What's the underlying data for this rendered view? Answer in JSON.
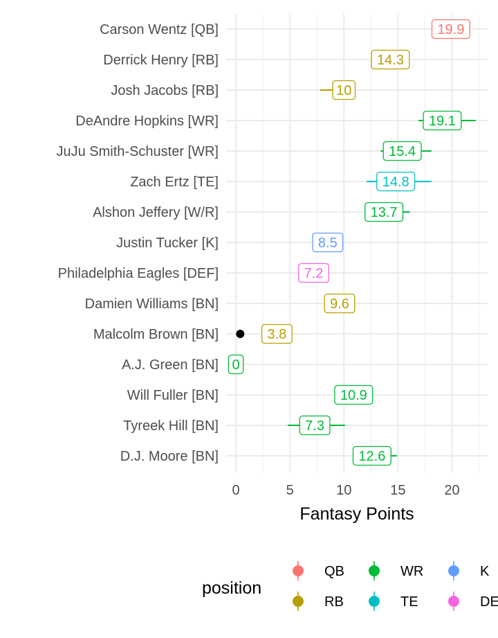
{
  "chart_data": {
    "type": "scatter",
    "xlabel": "Fantasy Points",
    "xlim": [
      -0.9,
      23.3
    ],
    "x_ticks": [
      0,
      5,
      10,
      15,
      20
    ],
    "grid": true,
    "legend_position": "bottom",
    "legend_title": "position",
    "players": [
      {
        "name": "Carson Wentz [QB]",
        "position": "QB",
        "points": 19.9,
        "label": "19.9",
        "range": null
      },
      {
        "name": "Derrick Henry [RB]",
        "position": "RB",
        "points": 14.3,
        "label": "14.3",
        "range": null
      },
      {
        "name": "Josh Jacobs [RB]",
        "position": "RB",
        "points": 10,
        "label": "10",
        "range": [
          7.8,
          10.9
        ]
      },
      {
        "name": "DeAndre Hopkins [WR]",
        "position": "WR",
        "points": 19.1,
        "label": "19.1",
        "range": [
          16.9,
          22.2
        ]
      },
      {
        "name": "JuJu Smith-Schuster [WR]",
        "position": "WR",
        "points": 15.4,
        "label": "15.4",
        "range": [
          13.4,
          18.1
        ]
      },
      {
        "name": "Zach Ertz [TE]",
        "position": "TE",
        "points": 14.8,
        "label": "14.8",
        "range": [
          12.1,
          18.1
        ]
      },
      {
        "name": "Alshon Jeffery [W/R]",
        "position": "WR",
        "points": 13.7,
        "label": "13.7",
        "range": [
          12.7,
          16.1
        ]
      },
      {
        "name": "Justin Tucker [K]",
        "position": "K",
        "points": 8.5,
        "label": "8.5",
        "range": null
      },
      {
        "name": "Philadelphia Eagles [DEF]",
        "position": "DEF",
        "points": 7.2,
        "label": "7.2",
        "range": null
      },
      {
        "name": "Damien Williams [BN]",
        "position": "RB",
        "points": 9.6,
        "label": "9.6",
        "range": null
      },
      {
        "name": "Malcolm Brown [BN]",
        "position": "RB",
        "points": 3.8,
        "label": "3.8",
        "range": null
      },
      {
        "name": "A.J. Green [BN]",
        "position": "WR",
        "points": 0,
        "label": "0",
        "range": null
      },
      {
        "name": "Will Fuller [BN]",
        "position": "WR",
        "points": 10.9,
        "label": "10.9",
        "range": null
      },
      {
        "name": "Tyreek Hill [BN]",
        "position": "WR",
        "points": 7.3,
        "label": "7.3",
        "range": [
          4.8,
          10.1
        ]
      },
      {
        "name": "D.J. Moore [BN]",
        "position": "WR",
        "points": 12.6,
        "label": "12.6",
        "range": [
          11.3,
          14.9
        ]
      }
    ],
    "extra_points": [
      {
        "player": "Malcolm Brown [BN]",
        "x": 0.4,
        "color": "#000000"
      }
    ],
    "legend": [
      {
        "label": "QB",
        "color": "#F8766D"
      },
      {
        "label": "RB",
        "color": "#B79F00"
      },
      {
        "label": "WR",
        "color": "#00BA38"
      },
      {
        "label": "TE",
        "color": "#00BFC4"
      },
      {
        "label": "K",
        "color": "#619CFF"
      },
      {
        "label": "DEF",
        "color": "#F564E3"
      }
    ]
  }
}
